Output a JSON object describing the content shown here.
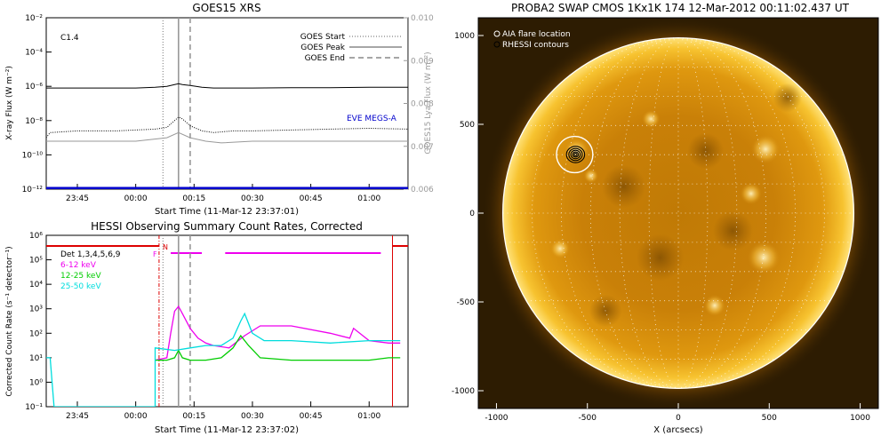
{
  "chart_data": [
    {
      "type": "line",
      "title": "GOES15 XRS",
      "annotation": "C1.4",
      "xlabel": "Start Time (11-Mar-12 23:37:01)",
      "ylabel": "X-ray Flux (W m⁻²)",
      "ylabel_right": "GOES15 Lya Flux (W m⁻²)",
      "x_ticks": [
        "23:45",
        "00:00",
        "00:15",
        "00:30",
        "00:45",
        "01:00"
      ],
      "y_ticks": [
        "10⁻²",
        "10⁻⁴",
        "10⁻⁶",
        "10⁻⁸",
        "10⁻¹⁰",
        "10⁻¹²"
      ],
      "y_right_ticks": [
        "0.010",
        "0.009",
        "0.008",
        "0.007",
        "0.006"
      ],
      "ylog": true,
      "ylim_exp": [
        -12,
        -2
      ],
      "y_right_lim": [
        0.006,
        0.01
      ],
      "legend": [
        {
          "label": "GOES Start",
          "style": "dotted"
        },
        {
          "label": "GOES Peak",
          "style": "solid"
        },
        {
          "label": "GOES End",
          "style": "dashed"
        }
      ],
      "legend_position": "top-right",
      "series_label": "EVE MEGS-A",
      "markers": {
        "start": "00:07",
        "peak": "00:11",
        "end": "00:14"
      },
      "series": [
        {
          "color": "#000000",
          "style": "solid",
          "x": [
            "23:37",
            "23:45",
            "23:55",
            "00:00",
            "00:05",
            "00:08",
            "00:10",
            "00:11",
            "00:12",
            "00:14",
            "00:17",
            "00:20",
            "00:25",
            "00:30",
            "00:40",
            "00:50",
            "01:00",
            "01:10"
          ],
          "log_y": [
            -6.1,
            -6.1,
            -6.1,
            -6.1,
            -6.05,
            -6.0,
            -5.9,
            -5.85,
            -5.9,
            -5.95,
            -6.05,
            -6.1,
            -6.1,
            -6.1,
            -6.08,
            -6.08,
            -6.05,
            -6.05
          ]
        },
        {
          "color": "#000000",
          "style": "dotted",
          "x": [
            "23:37",
            "23:38",
            "23:45",
            "23:55",
            "00:05",
            "00:08",
            "00:10",
            "00:11",
            "00:12",
            "00:14",
            "00:17",
            "00:20",
            "00:25",
            "00:30",
            "00:40",
            "00:50",
            "01:00",
            "01:10"
          ],
          "log_y": [
            -9.0,
            -8.7,
            -8.6,
            -8.6,
            -8.5,
            -8.4,
            -8.0,
            -7.8,
            -7.9,
            -8.3,
            -8.6,
            -8.7,
            -8.6,
            -8.6,
            -8.55,
            -8.5,
            -8.45,
            -8.5
          ]
        },
        {
          "color": "#999999",
          "style": "solid",
          "x": [
            "23:37",
            "23:45",
            "00:00",
            "00:08",
            "00:11",
            "00:14",
            "00:18",
            "00:22",
            "00:30",
            "00:45",
            "01:00",
            "01:10"
          ],
          "log_y": [
            -9.2,
            -9.2,
            -9.2,
            -9.0,
            -8.7,
            -9.0,
            -9.2,
            -9.3,
            -9.2,
            -9.2,
            -9.2,
            -9.2
          ]
        },
        {
          "color": "#0000cc",
          "style": "solid",
          "x": [
            "23:37",
            "01:10"
          ],
          "log_y": [
            -11.95,
            -11.95
          ]
        }
      ]
    },
    {
      "type": "line",
      "title": "HESSI Observing Summary Count Rates, Corrected",
      "xlabel": "Start Time (11-Mar-12 23:37:02)",
      "ylabel": "Corrected Count Rate (s⁻¹ detector⁻¹)",
      "x_ticks": [
        "23:45",
        "00:00",
        "00:15",
        "00:30",
        "00:45",
        "01:00"
      ],
      "y_ticks": [
        "10⁶",
        "10⁵",
        "10⁴",
        "10³",
        "10²",
        "10¹",
        "10⁰",
        "10⁻¹"
      ],
      "ylog": true,
      "ylim_exp": [
        -1,
        6
      ],
      "legend": [
        {
          "label": "Det 1,3,4,5,6,9",
          "color": "#000000"
        },
        {
          "label": "6-12 keV",
          "color": "#ee00ee"
        },
        {
          "label": "12-25 keV",
          "color": "#00cc00"
        },
        {
          "label": "25-50 keV",
          "color": "#00dddd"
        }
      ],
      "legend_position": "top-left",
      "flags": [
        "F",
        "N"
      ],
      "series": [
        {
          "name": "6-12 keV",
          "color": "#ee00ee",
          "x": [
            "00:05",
            "00:08",
            "00:09",
            "00:10",
            "00:11",
            "00:12",
            "00:14",
            "00:16",
            "00:18",
            "00:20",
            "00:24",
            "00:28",
            "00:32",
            "00:40",
            "00:50",
            "00:55",
            "00:56",
            "01:00",
            "01:05",
            "01:08"
          ],
          "log_y": [
            0.9,
            1.0,
            2.0,
            2.9,
            3.1,
            2.8,
            2.2,
            1.8,
            1.6,
            1.5,
            1.4,
            1.9,
            2.3,
            2.3,
            2.0,
            1.8,
            2.2,
            1.7,
            1.6,
            1.6
          ]
        },
        {
          "name": "12-25 keV",
          "color": "#00cc00",
          "x": [
            "00:05",
            "00:08",
            "00:10",
            "00:11",
            "00:12",
            "00:14",
            "00:18",
            "00:22",
            "00:25",
            "00:27",
            "00:29",
            "00:32",
            "00:40",
            "00:50",
            "01:00",
            "01:05",
            "01:08"
          ],
          "log_y": [
            0.9,
            0.9,
            1.0,
            1.3,
            1.0,
            0.9,
            0.9,
            1.0,
            1.4,
            1.9,
            1.5,
            1.0,
            0.9,
            0.9,
            0.9,
            1.0,
            1.0
          ]
        },
        {
          "name": "25-50 keV",
          "color": "#00dddd",
          "x": [
            "23:37",
            "23:38",
            "23:39",
            "00:05",
            "00:05",
            "00:10",
            "00:14",
            "00:18",
            "00:22",
            "00:25",
            "00:27",
            "00:28",
            "00:30",
            "00:33",
            "00:40",
            "00:50",
            "01:00",
            "01:08"
          ],
          "log_y": [
            1.0,
            1.0,
            -1.0,
            -1.0,
            1.4,
            1.3,
            1.4,
            1.5,
            1.5,
            1.8,
            2.5,
            2.8,
            2.0,
            1.7,
            1.7,
            1.6,
            1.7,
            1.7
          ]
        }
      ],
      "night_bars": {
        "color": "#dd0000",
        "markers": [
          "00:06",
          "01:06"
        ]
      },
      "saa_bars": {
        "color": "#ee00ee",
        "segments": [
          [
            "00:09",
            "00:17"
          ],
          [
            "00:23",
            "01:03"
          ]
        ]
      },
      "markers": {
        "start": "00:07",
        "peak": "00:11",
        "end": "00:14"
      }
    },
    {
      "type": "image",
      "title": "PROBA2 SWAP CMOS 1Kx1K 174 12-Mar-2012 00:11:02.437 UT",
      "xlabel": "X (arcsecs)",
      "x_ticks": [
        "-1000",
        "-500",
        "0",
        "500",
        "1000"
      ],
      "y_ticks": [
        "1000",
        "500",
        "0",
        "-500",
        "-1000"
      ],
      "xlim": [
        -1100,
        1100
      ],
      "ylim": [
        -1100,
        1100
      ],
      "legend": [
        {
          "label": "AIA flare location",
          "symbol": "circle-open"
        },
        {
          "label": "RHESSI contours",
          "symbol": "circle-open"
        }
      ],
      "legend_position": "top-left",
      "flare_location": {
        "x": -570,
        "y": 330
      },
      "solar_radius_arcsec": 965
    }
  ]
}
